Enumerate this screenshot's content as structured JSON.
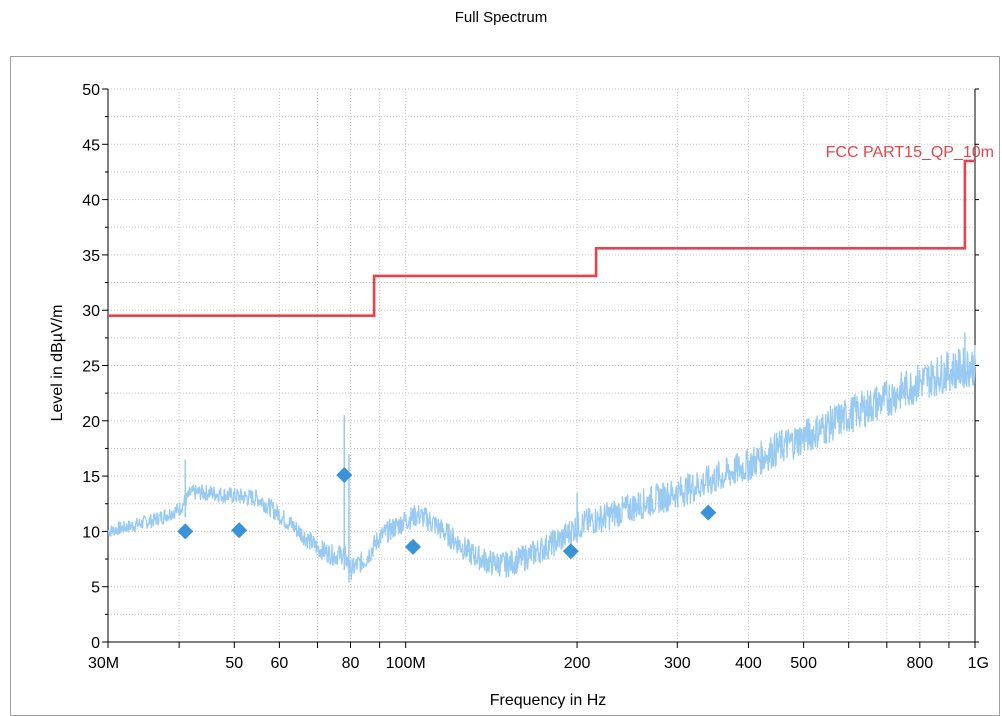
{
  "chart_data": {
    "type": "line",
    "title": "Full Spectrum",
    "xlabel": "Frequency in Hz",
    "ylabel": "Level in dBµV/m",
    "x_scale": "log",
    "xlim": [
      30000000,
      1000000000
    ],
    "ylim": [
      0,
      50
    ],
    "grid": true,
    "x_ticks": [
      {
        "value": 30000000,
        "label": "30M"
      },
      {
        "value": 40000000,
        "label": ""
      },
      {
        "value": 50000000,
        "label": "50"
      },
      {
        "value": 60000000,
        "label": "60"
      },
      {
        "value": 70000000,
        "label": ""
      },
      {
        "value": 80000000,
        "label": "80"
      },
      {
        "value": 90000000,
        "label": ""
      },
      {
        "value": 100000000,
        "label": "100M"
      },
      {
        "value": 200000000,
        "label": "200"
      },
      {
        "value": 300000000,
        "label": "300"
      },
      {
        "value": 400000000,
        "label": "400"
      },
      {
        "value": 500000000,
        "label": "500"
      },
      {
        "value": 600000000,
        "label": ""
      },
      {
        "value": 700000000,
        "label": ""
      },
      {
        "value": 800000000,
        "label": "800"
      },
      {
        "value": 900000000,
        "label": ""
      },
      {
        "value": 1000000000,
        "label": "1G"
      }
    ],
    "y_ticks": [
      0,
      5,
      10,
      15,
      20,
      25,
      30,
      35,
      40,
      45,
      50
    ],
    "series": [
      {
        "name": "FCC PART15_QP_10m",
        "kind": "limit-step",
        "color": "#e8434b",
        "points": [
          [
            30000000,
            29.5
          ],
          [
            88000000,
            29.5
          ],
          [
            88000000,
            33.1
          ],
          [
            216000000,
            33.1
          ],
          [
            216000000,
            35.6
          ],
          [
            960000000,
            35.6
          ],
          [
            960000000,
            43.5
          ],
          [
            1000000000,
            43.5
          ]
        ]
      },
      {
        "name": "",
        "kind": "spectrum",
        "color": "#99cbf2",
        "points": [
          [
            30000000,
            10.0
          ],
          [
            33000000,
            10.5
          ],
          [
            36000000,
            11.0
          ],
          [
            40000000,
            12.0
          ],
          [
            42000000,
            13.5
          ],
          [
            45000000,
            13.5
          ],
          [
            50000000,
            13.2
          ],
          [
            55000000,
            13.0
          ],
          [
            60000000,
            11.5
          ],
          [
            65000000,
            10.0
          ],
          [
            70000000,
            8.5
          ],
          [
            75000000,
            7.8
          ],
          [
            78000000,
            8.0
          ],
          [
            80000000,
            6.5
          ],
          [
            85000000,
            7.5
          ],
          [
            90000000,
            9.5
          ],
          [
            100000000,
            11.0
          ],
          [
            105000000,
            11.5
          ],
          [
            110000000,
            11.0
          ],
          [
            120000000,
            9.5
          ],
          [
            130000000,
            8.0
          ],
          [
            140000000,
            7.2
          ],
          [
            150000000,
            7.0
          ],
          [
            160000000,
            7.5
          ],
          [
            175000000,
            8.5
          ],
          [
            190000000,
            9.5
          ],
          [
            200000000,
            10.5
          ],
          [
            230000000,
            11.5
          ],
          [
            260000000,
            12.5
          ],
          [
            300000000,
            13.5
          ],
          [
            340000000,
            14.5
          ],
          [
            400000000,
            16.0
          ],
          [
            450000000,
            17.5
          ],
          [
            500000000,
            18.5
          ],
          [
            600000000,
            20.5
          ],
          [
            700000000,
            22.0
          ],
          [
            800000000,
            23.5
          ],
          [
            900000000,
            24.5
          ],
          [
            1000000000,
            25.0
          ]
        ],
        "peaks": [
          [
            41000000,
            16.5
          ],
          [
            78000000,
            20.5
          ],
          [
            79500000,
            17.0
          ],
          [
            200000000,
            13.5
          ],
          [
            960000000,
            28.0
          ]
        ]
      }
    ],
    "markers": {
      "color": "#3a93d6",
      "points": [
        [
          41000000,
          10.0
        ],
        [
          51000000,
          10.1
        ],
        [
          78000000,
          15.1
        ],
        [
          103000000,
          8.6
        ],
        [
          195000000,
          8.2
        ],
        [
          340000000,
          11.7
        ]
      ]
    }
  }
}
